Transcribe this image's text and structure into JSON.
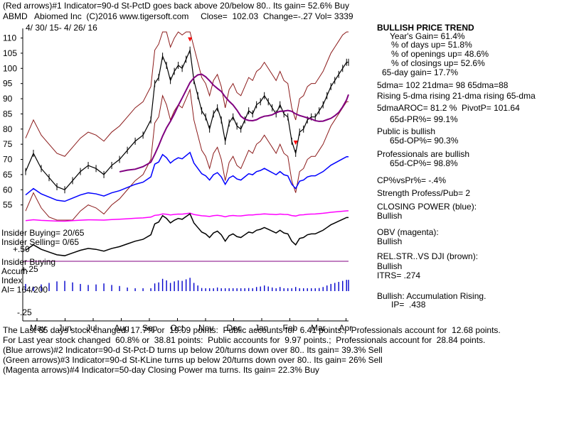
{
  "header": {
    "red_arrows_line": "(Red arrows)#1 Indicator=90-d St-PctD goes back above 20/below 80.. Its gain= 52.6% Buy",
    "ticker_line": "ABMD   Abiomed Inc  (C)2016 www.tigersoft.com     Close=  102.03  Change=-.27 Vol= 3339",
    "date_range": "4/ 30/ 15- 4/ 26/ 16"
  },
  "right_panel": {
    "bullish_trend_title": "BULLISH PRICE TREND",
    "years_gain": "Year's Gain= 61.4%",
    "days_up": "% of days up= 51.8%",
    "openings_up": "% of openings up= 48.6%",
    "closings_up": "% of closings up= 52.6%",
    "gain_65day": "65-day gain= 17.7%",
    "dma_values": "5dma= 102 21dma= 98 65dma=88",
    "dma_rising": "Rising 5-dma rising 21-dma rising 65-dma",
    "aroc": "5dmaAROC= 81.2 %  PivotP= 101.64",
    "pr_65d": "65d-PR%= 99.1%",
    "public_bullish": "Public is bullish",
    "op_65d": "65d-OP%= 90.3%",
    "pros_bullish": "Professionals are bullish",
    "cp_65d": "65d-CP%= 98.8%",
    "cp_vs_pr": "CP%vsPr%= -.4%",
    "strength": "Strength Profess/Pub= 2",
    "closing_power_title": "CLOSING POWER (blue):",
    "closing_power_status": "Bullish",
    "obv_title": "OBV (magenta):",
    "obv_status": "Bullish",
    "relstr_title": "REL.STR..VS DJI (brown):",
    "relstr_status": "Bullish",
    "itrs": "ITRS= .274",
    "accum": "Bullish: Accumulation Rising.",
    "ip": "IP=  .438"
  },
  "left_labels": {
    "insider_buying": "Insider Buying= 20/65",
    "insider_selling": "Insider Selling= 0/65",
    "plus50": "+.50",
    "insider_buying2": "Insider Buying",
    "accum_label": "Accum",
    "plus25": "+.25",
    "index_label": "Index",
    "ai_label": "AI= 164/200",
    "minus25": "-.25"
  },
  "footer": {
    "line1": "The Last 65 days stock changed  17.7% or  19.09 points:  Public accounts for  6.41 points.;  Professionals account for  12.68 points.",
    "line2": "For Last year stock changed  60.8% or  38.81 points:  Public accounts for  9.97 points.;  Professionals account for  28.84 points.",
    "line3": "(Blue arrows)#2 Indicator=90-d St-Pct-D turns up below 20/turns down over 80.. Its gain= 39.3% Sell",
    "line4": "(Green arrows)#3 Indicator=90-d St-KLine turns up below 20/turns down over 80.. Its gain= 26% Sell",
    "line5": "(Magenta arrows)#4 Indicator=50-day Closing Power ma turns. Its gain= 22.3% Buy"
  },
  "colors": {
    "price": "#000000",
    "bands": "#8b1a1a",
    "ma65": "#800080",
    "closing_power": "#0000ff",
    "obv": "#ff00ff",
    "relstr": "#000000",
    "accum_pos": "#0000cc",
    "accum_neg": "#cc0000",
    "dotted": "#cc0000"
  },
  "chart_data": {
    "type": "line",
    "title": "ABMD Abiomed Inc",
    "ylim": [
      50,
      112
    ],
    "y_ticks": [
      "55",
      "60",
      "65",
      "70",
      "75",
      "80",
      "85",
      "90",
      "95",
      "100",
      "105",
      "110"
    ],
    "x_ticks": [
      "May",
      "Jun",
      "Jul",
      "Aug",
      "Sep",
      "Oct",
      "Nov",
      "Dec",
      "Jan",
      "Feb",
      "Mar",
      "Apr"
    ],
    "price_series": [
      [
        0,
        66
      ],
      [
        4,
        72
      ],
      [
        8,
        67
      ],
      [
        12,
        64
      ],
      [
        16,
        61
      ],
      [
        20,
        60
      ],
      [
        24,
        63
      ],
      [
        28,
        66
      ],
      [
        32,
        68
      ],
      [
        36,
        67
      ],
      [
        40,
        65
      ],
      [
        44,
        68
      ],
      [
        48,
        70
      ],
      [
        52,
        73
      ],
      [
        56,
        76
      ],
      [
        60,
        78
      ],
      [
        64,
        83
      ],
      [
        66,
        95
      ],
      [
        68,
        97
      ],
      [
        70,
        104
      ],
      [
        72,
        101
      ],
      [
        74,
        96
      ],
      [
        76,
        99
      ],
      [
        78,
        101
      ],
      [
        80,
        100
      ],
      [
        82,
        103
      ],
      [
        84,
        106
      ],
      [
        86,
        96
      ],
      [
        88,
        91
      ],
      [
        90,
        86
      ],
      [
        92,
        84
      ],
      [
        94,
        80
      ],
      [
        96,
        85
      ],
      [
        98,
        87
      ],
      [
        100,
        83
      ],
      [
        102,
        76
      ],
      [
        104,
        82
      ],
      [
        106,
        84
      ],
      [
        108,
        81
      ],
      [
        110,
        80
      ],
      [
        112,
        83
      ],
      [
        114,
        86
      ],
      [
        116,
        85
      ],
      [
        118,
        88
      ],
      [
        120,
        89
      ],
      [
        122,
        91
      ],
      [
        124,
        89
      ],
      [
        126,
        87
      ],
      [
        128,
        85
      ],
      [
        130,
        88
      ],
      [
        132,
        85
      ],
      [
        134,
        84
      ],
      [
        136,
        76
      ],
      [
        138,
        72
      ],
      [
        140,
        79
      ],
      [
        142,
        80
      ],
      [
        144,
        83
      ],
      [
        146,
        84
      ],
      [
        148,
        84
      ],
      [
        150,
        86
      ],
      [
        152,
        88
      ],
      [
        154,
        91
      ],
      [
        156,
        94
      ],
      [
        158,
        96
      ],
      [
        160,
        98
      ],
      [
        162,
        100
      ],
      [
        164,
        102
      ],
      [
        165,
        102
      ]
    ],
    "series_names": [
      "price",
      "upper-band",
      "lower-band",
      "65-dma",
      "closing-power",
      "obv",
      "accumulation-index"
    ],
    "bullish_arrow_note": "red arrows mark Buy signals"
  }
}
